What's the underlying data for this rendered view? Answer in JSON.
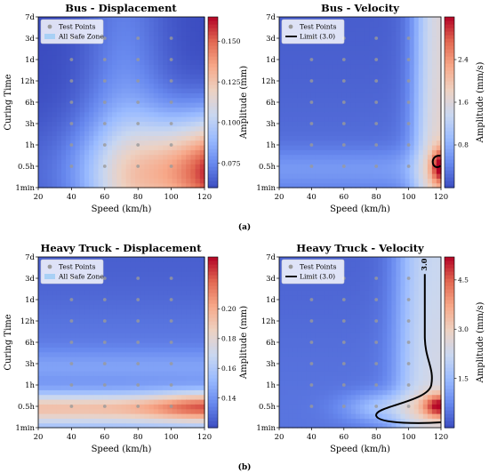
{
  "colors": {
    "cmap": [
      "#3b4cc0",
      "#6788ee",
      "#9abbff",
      "#c9d7f0",
      "#edd1c2",
      "#f7a889",
      "#e26952",
      "#b40426"
    ],
    "point": "#9a9a9a",
    "limit": "#000000",
    "safe_zone": "#a8d0f5"
  },
  "panel_labels": [
    "(a)",
    "(b)"
  ],
  "chart_data": [
    {
      "type": "heatmap",
      "title": "Bus - Displacement",
      "xlabel": "Speed (km/h)",
      "ylabel": "Curing Time",
      "x_ticks": [
        20,
        40,
        60,
        80,
        100,
        120
      ],
      "xlim": [
        20,
        120
      ],
      "y_ticks": [
        "1min",
        "0.5h",
        "1h",
        "3h",
        "6h",
        "12h",
        "1d",
        "3d",
        "7d"
      ],
      "colorbar": {
        "label": "Amplitude (mm)",
        "range": [
          0.06,
          0.165
        ],
        "ticks": [
          "0.075",
          "0.100",
          "0.125",
          "0.150"
        ],
        "tick_values": [
          0.075,
          0.1,
          0.125,
          0.15
        ]
      },
      "legend": {
        "position": "top-left",
        "entries": [
          "Test Points",
          "All Safe Zone"
        ]
      },
      "test_points": {
        "speeds": [
          40,
          60,
          80,
          100
        ],
        "curing_levels": [
          "0.5h",
          "1h",
          "3h",
          "6h",
          "12h",
          "1d",
          "3d"
        ]
      },
      "limit": null
    },
    {
      "type": "heatmap",
      "title": "Bus - Velocity",
      "xlabel": "Speed (km/h)",
      "ylabel": "",
      "x_ticks": [
        20,
        40,
        60,
        80,
        100,
        120
      ],
      "xlim": [
        20,
        120
      ],
      "y_ticks": [
        "1min",
        "0.5h",
        "1h",
        "3h",
        "6h",
        "12h",
        "1d",
        "3d",
        "7d"
      ],
      "colorbar": {
        "label": "Amplitude (mm/s)",
        "range": [
          0,
          3.2
        ],
        "ticks": [
          "0.8",
          "1.6",
          "2.4"
        ],
        "tick_values": [
          0.8,
          1.6,
          2.4
        ]
      },
      "legend": {
        "position": "top-left",
        "entries": [
          "Test Points",
          "Limit (3.0)"
        ]
      },
      "test_points": {
        "speeds": [
          40,
          60,
          80,
          100
        ],
        "curing_levels": [
          "0.5h",
          "1h",
          "3h",
          "6h",
          "12h",
          "1d",
          "3d"
        ]
      },
      "limit": {
        "value": 3.0,
        "label": ""
      }
    },
    {
      "type": "heatmap",
      "title": "Heavy Truck - Displacement",
      "xlabel": "Speed (km/h)",
      "ylabel": "Curing Time",
      "x_ticks": [
        20,
        40,
        60,
        80,
        100,
        120
      ],
      "xlim": [
        20,
        120
      ],
      "y_ticks": [
        "1min",
        "0.5h",
        "1h",
        "3h",
        "6h",
        "12h",
        "1d",
        "3d",
        "7d"
      ],
      "colorbar": {
        "label": "Amplitude (mm)",
        "range": [
          0.12,
          0.235
        ],
        "ticks": [
          "0.14",
          "0.16",
          "0.18",
          "0.20"
        ],
        "tick_values": [
          0.14,
          0.16,
          0.18,
          0.2
        ]
      },
      "legend": {
        "position": "top-left",
        "entries": [
          "Test Points",
          "All Safe Zone"
        ]
      },
      "test_points": {
        "speeds": [
          40,
          60,
          80,
          100
        ],
        "curing_levels": [
          "0.5h",
          "1h",
          "3h",
          "6h",
          "12h",
          "1d",
          "3d"
        ]
      },
      "limit": null
    },
    {
      "type": "heatmap",
      "title": "Heavy Truck - Velocity",
      "xlabel": "Speed (km/h)",
      "ylabel": "",
      "x_ticks": [
        20,
        40,
        60,
        80,
        100,
        120
      ],
      "xlim": [
        20,
        120
      ],
      "y_ticks": [
        "1min",
        "0.5h",
        "1h",
        "3h",
        "6h",
        "12h",
        "1d",
        "3d",
        "7d"
      ],
      "colorbar": {
        "label": "Amplitude (mm/s)",
        "range": [
          0,
          5.2
        ],
        "ticks": [
          "1.5",
          "3.0",
          "4.5"
        ],
        "tick_values": [
          1.5,
          3.0,
          4.5
        ]
      },
      "legend": {
        "position": "top-left",
        "entries": [
          "Test Points",
          "Limit (3.0)"
        ]
      },
      "test_points": {
        "speeds": [
          40,
          60,
          80,
          100
        ],
        "curing_levels": [
          "0.5h",
          "1h",
          "3h",
          "6h",
          "12h",
          "1d",
          "3d"
        ]
      },
      "limit": {
        "value": 3.0,
        "label": "3.0"
      }
    }
  ]
}
